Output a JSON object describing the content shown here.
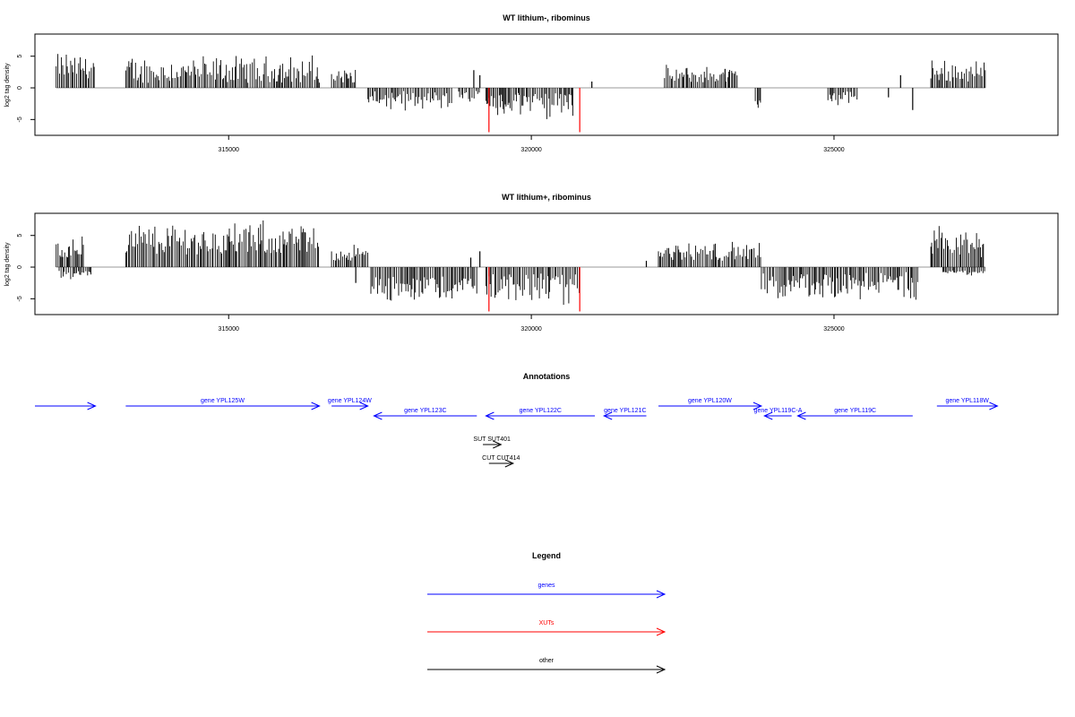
{
  "chart_data": [
    {
      "type": "bar",
      "title": "WT lithium-, ribominus",
      "ylabel": "log2 tag density",
      "xlabel": "",
      "xlim": [
        311800,
        328700
      ],
      "ylim": [
        -7.5,
        8.5
      ],
      "xticks": [
        315000,
        320000,
        325000
      ],
      "xtick_labels": [
        "315000",
        "320000",
        "325000"
      ],
      "yticks": [
        -5,
        0,
        5
      ],
      "ytick_labels": [
        "-5",
        "0",
        "5"
      ],
      "grid": false,
      "baseline_color": "#999999",
      "series": [
        {
          "color": "#000000",
          "regions": [
            {
              "x_start": 312150,
              "x_end": 312800,
              "sign": 1,
              "min": 1.5,
              "max": 6.2
            },
            {
              "x_start": 313300,
              "x_end": 316500,
              "sign": 1,
              "min": 0.8,
              "max": 5.6
            },
            {
              "x_start": 316700,
              "x_end": 317100,
              "sign": 1,
              "min": 0.8,
              "max": 3.5
            },
            {
              "x_start": 317300,
              "x_end": 318700,
              "sign": -1,
              "min": 0.5,
              "max": 3.8
            },
            {
              "x_start": 318800,
              "x_end": 319150,
              "sign": -1,
              "min": 0.5,
              "max": 2.5
            },
            {
              "x_start": 319250,
              "x_end": 320700,
              "sign": -1,
              "min": 0.8,
              "max": 5.8
            },
            {
              "x_start": 322200,
              "x_end": 323400,
              "sign": 1,
              "min": 0.8,
              "max": 3.8
            },
            {
              "x_start": 323700,
              "x_end": 323800,
              "sign": -1,
              "min": 2.0,
              "max": 3.8
            },
            {
              "x_start": 324900,
              "x_end": 325400,
              "sign": -1,
              "min": 0.5,
              "max": 3.0
            },
            {
              "x_start": 326600,
              "x_end": 327500,
              "sign": 1,
              "min": 1.0,
              "max": 5.0
            }
          ],
          "spikes": [
            {
              "x": 319050,
              "y": 2.8
            },
            {
              "x": 319150,
              "y": 2.0
            },
            {
              "x": 321000,
              "y": 1.0
            },
            {
              "x": 323200,
              "y": 3.0
            },
            {
              "x": 326300,
              "y": -3.5
            },
            {
              "x": 326100,
              "y": 2.0
            },
            {
              "x": 325900,
              "y": -1.5
            }
          ]
        },
        {
          "name": "XUTs",
          "color": "#ff0000",
          "spikes": [
            {
              "x": 319300,
              "y": -7.0
            },
            {
              "x": 320800,
              "y": -7.0
            }
          ]
        }
      ]
    },
    {
      "type": "bar",
      "title": "WT lithium+, ribominus",
      "ylabel": "log2 tag density",
      "xlabel": "",
      "xlim": [
        311800,
        328700
      ],
      "ylim": [
        -7.5,
        8.5
      ],
      "xticks": [
        315000,
        320000,
        325000
      ],
      "xtick_labels": [
        "315000",
        "320000",
        "325000"
      ],
      "yticks": [
        -5,
        0,
        5
      ],
      "ytick_labels": [
        "-5",
        "0",
        "5"
      ],
      "grid": false,
      "baseline_color": "#999999",
      "series": [
        {
          "color": "#000000",
          "regions": [
            {
              "x_start": 312150,
              "x_end": 312600,
              "sign": 1,
              "min": 1.5,
              "max": 5.5
            },
            {
              "x_start": 312200,
              "x_end": 312750,
              "sign": -1,
              "min": 0.5,
              "max": 2.2
            },
            {
              "x_start": 313300,
              "x_end": 316500,
              "sign": 1,
              "min": 2.0,
              "max": 7.8
            },
            {
              "x_start": 316700,
              "x_end": 317300,
              "sign": 1,
              "min": 1.0,
              "max": 3.8
            },
            {
              "x_start": 317350,
              "x_end": 319100,
              "sign": -1,
              "min": 1.5,
              "max": 6.0
            },
            {
              "x_start": 319250,
              "x_end": 320800,
              "sign": -1,
              "min": 1.0,
              "max": 6.5
            },
            {
              "x_start": 322100,
              "x_end": 323800,
              "sign": 1,
              "min": 1.0,
              "max": 4.5
            },
            {
              "x_start": 323800,
              "x_end": 326400,
              "sign": -1,
              "min": 0.8,
              "max": 5.5
            },
            {
              "x_start": 326600,
              "x_end": 327500,
              "sign": 1,
              "min": 1.5,
              "max": 7.0
            },
            {
              "x_start": 326800,
              "x_end": 327500,
              "sign": -1,
              "min": 0.5,
              "max": 1.5
            }
          ],
          "spikes": [
            {
              "x": 319000,
              "y": 1.5
            },
            {
              "x": 319150,
              "y": 2.5
            },
            {
              "x": 321900,
              "y": 1.0
            },
            {
              "x": 317100,
              "y": -2.5
            }
          ]
        },
        {
          "name": "XUTs",
          "color": "#ff0000",
          "spikes": [
            {
              "x": 319300,
              "y": -7.0
            },
            {
              "x": 320800,
              "y": -7.0
            }
          ]
        }
      ]
    }
  ],
  "annotations": {
    "title": "Annotations",
    "genes": [
      {
        "label": "",
        "x_start": 311800,
        "x_end": 312800,
        "strand": "+",
        "row": 0
      },
      {
        "label": "gene YPL125W",
        "x_start": 313300,
        "x_end": 316500,
        "strand": "+",
        "row": 0
      },
      {
        "label": "gene YPL124W",
        "x_start": 316700,
        "x_end": 317300,
        "strand": "+",
        "row": 0
      },
      {
        "label": "gene YPL123C",
        "x_start": 317400,
        "x_end": 319100,
        "strand": "-",
        "row": 1
      },
      {
        "label": "gene YPL122C",
        "x_start": 319250,
        "x_end": 321050,
        "strand": "-",
        "row": 1
      },
      {
        "label": "gene YPL121C",
        "x_start": 321200,
        "x_end": 321900,
        "strand": "-",
        "row": 1
      },
      {
        "label": "gene YPL120W",
        "x_start": 322100,
        "x_end": 323800,
        "strand": "+",
        "row": 0
      },
      {
        "label": "gene YPL119C-A",
        "x_start": 323850,
        "x_end": 324300,
        "strand": "-",
        "row": 1
      },
      {
        "label": "gene YPL119C",
        "x_start": 324400,
        "x_end": 326300,
        "strand": "-",
        "row": 1
      },
      {
        "label": "gene YPL118W",
        "x_start": 326700,
        "x_end": 327700,
        "strand": "+",
        "row": 0
      }
    ],
    "other": [
      {
        "label": "SUT SUT401",
        "x_start": 319200,
        "x_end": 319500,
        "strand": "+",
        "row": 2
      },
      {
        "label": "CUT CUT414",
        "x_start": 319300,
        "x_end": 319700,
        "strand": "+",
        "row": 3
      }
    ]
  },
  "legend": {
    "title": "Legend",
    "items": [
      {
        "label": "genes",
        "color": "#0000ff"
      },
      {
        "label": "XUTs",
        "color": "#ff0000"
      },
      {
        "label": "other",
        "color": "#000000"
      }
    ]
  }
}
